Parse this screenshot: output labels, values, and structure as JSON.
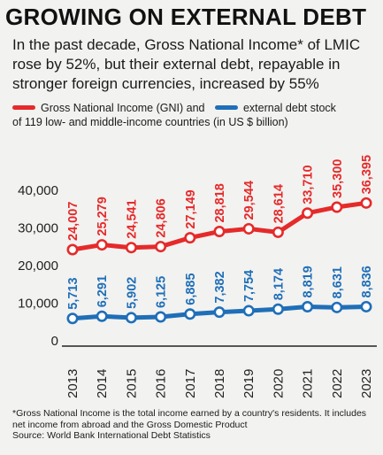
{
  "header": {
    "title": "GROWING ON EXTERNAL DEBT",
    "subtitle": "In the past decade, Gross National Income* of LMIC rose by 52%, but their external debt, repayable in stronger foreign currencies, increased by 55%"
  },
  "legend": {
    "gni_label": "Gross National Income (GNI) and",
    "debt_label": "external debt stock",
    "line2": "of 119 low- and middle-income countries (in US $ billion)"
  },
  "colors": {
    "gni": "#e52a2a",
    "debt": "#1f6fb8",
    "axis": "#222222"
  },
  "chart_data": {
    "type": "line",
    "x": [
      "2013",
      "2014",
      "2015",
      "2016",
      "2017",
      "2018",
      "2019",
      "2020",
      "2021",
      "2022",
      "2023"
    ],
    "series": [
      {
        "name": "Gross National Income (GNI)",
        "values": [
          24007,
          25279,
          24541,
          24806,
          27149,
          28818,
          29544,
          28614,
          33710,
          35300,
          36395
        ],
        "labels": [
          "24,007",
          "25,279",
          "24,541",
          "24,806",
          "27,149",
          "28,818",
          "29,544",
          "28,614",
          "33,710",
          "35,300",
          "36,395"
        ]
      },
      {
        "name": "external debt stock",
        "values": [
          5713,
          6291,
          5902,
          6125,
          6885,
          7382,
          7754,
          8174,
          8819,
          8631,
          8836
        ],
        "labels": [
          "5,713",
          "6,291",
          "5,902",
          "6,125",
          "6,885",
          "7,382",
          "7,754",
          "8,174",
          "8,819",
          "8,631",
          "8,836"
        ]
      }
    ],
    "yticks": [
      "40,000",
      "30,000",
      "20,000",
      "10,000",
      "0"
    ],
    "ytick_values": [
      40000,
      30000,
      20000,
      10000,
      0
    ],
    "ylim": [
      0,
      40000
    ],
    "grid": false
  },
  "footnote": {
    "line1": "*Gross National Income is the total income earned by a country's residents. It includes net income from abroad and the Gross Domestic Product",
    "source": "Source: World Bank International Debt Statistics"
  }
}
